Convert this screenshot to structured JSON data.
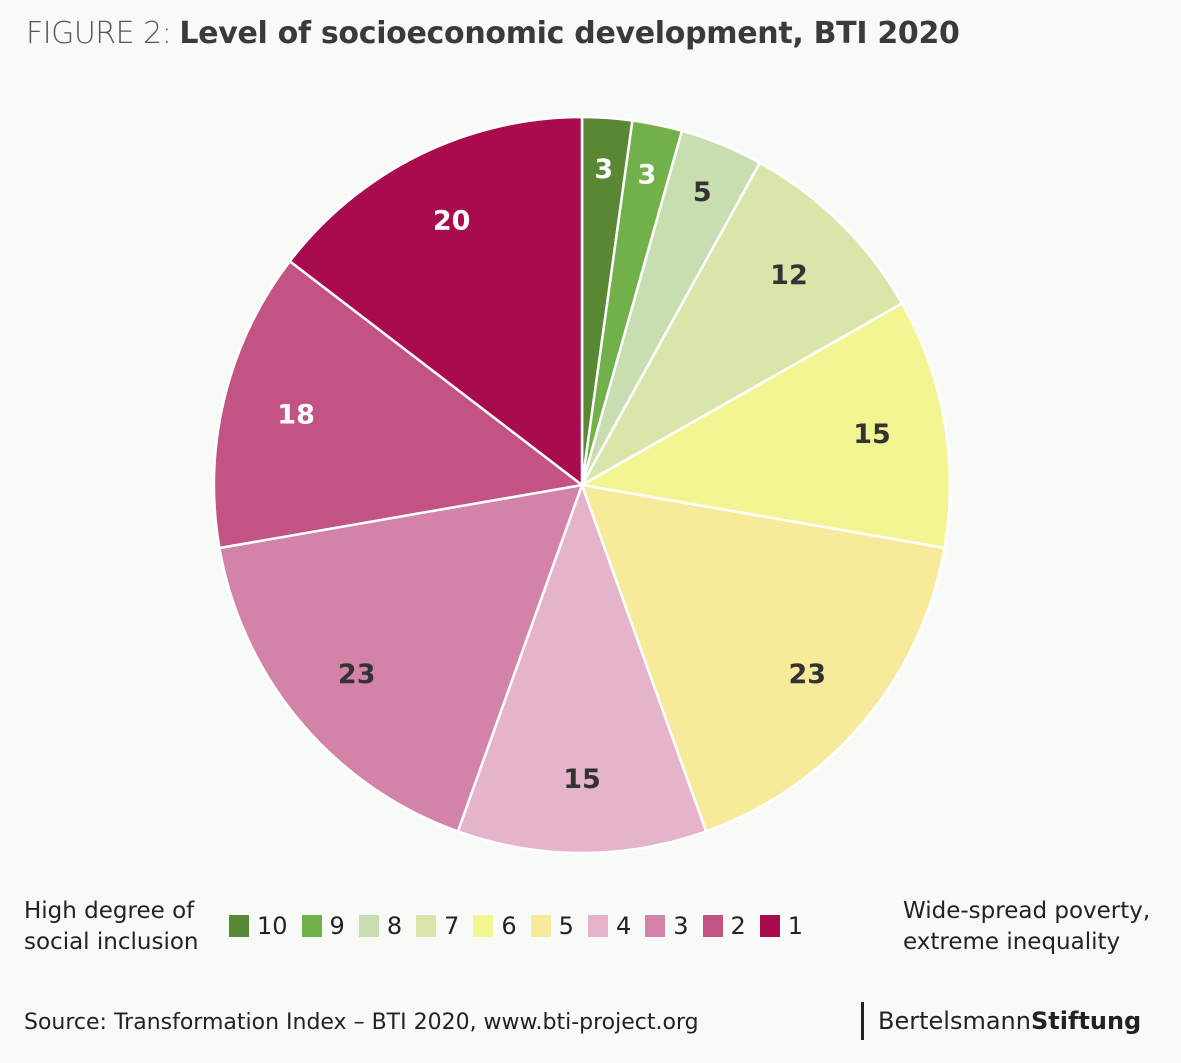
{
  "header": {
    "figure_prefix": "FIGURE 2:",
    "title": "Level of socioeconomic development, BTI 2020"
  },
  "chart_data": {
    "type": "pie",
    "title": "Level of socioeconomic development, BTI 2020",
    "start": "12 o'clock",
    "direction": "clockwise",
    "categories": [
      "10",
      "9",
      "8",
      "7",
      "6",
      "5",
      "4",
      "3",
      "2",
      "1"
    ],
    "values": [
      3,
      3,
      5,
      12,
      15,
      23,
      15,
      23,
      18,
      20
    ],
    "colors": [
      "#5a8734",
      "#72b04a",
      "#c9deb0",
      "#dae5a9",
      "#f3f492",
      "#f7ea9a",
      "#e5b3ca",
      "#d483a8",
      "#c35383",
      "#a80b4e"
    ],
    "label_colors": [
      "#ffffff",
      "#ffffff",
      "#333333",
      "#333333",
      "#333333",
      "#333333",
      "#333333",
      "#333333",
      "#ffffff",
      "#ffffff"
    ],
    "legend": {
      "placement": "bottom",
      "left_caption": [
        "High degree of",
        "social inclusion"
      ],
      "right_caption": [
        "Wide-spread poverty,",
        "extreme inequality"
      ]
    }
  },
  "footer": {
    "source": "Source: Transformation Index – BTI 2020, www.bti-project.org",
    "brand_regular": "Bertelsmann",
    "brand_bold": "Stiftung"
  }
}
